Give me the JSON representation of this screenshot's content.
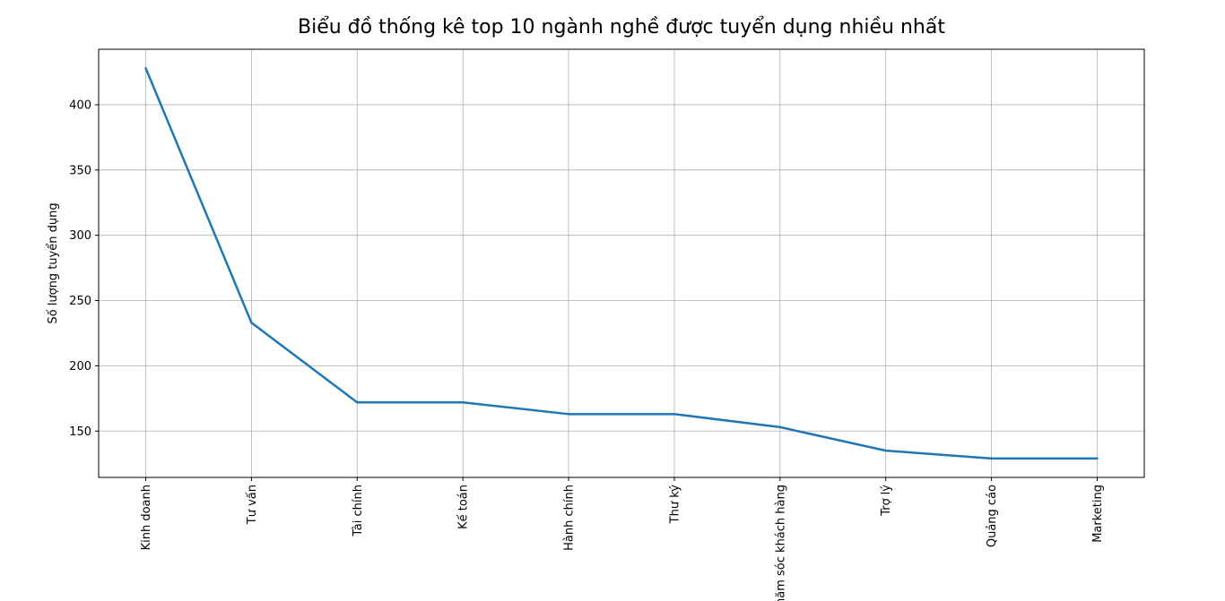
{
  "chart_data": {
    "type": "line",
    "title": "Biểu đồ thống kê top 10 ngành nghề được tuyển dụng nhiều nhất",
    "xlabel": "",
    "ylabel": "Số lượng tuyển dụng",
    "categories": [
      "Kinh doanh",
      "Tư vấn",
      "Tài chính",
      "Kế toán",
      "Hành chính",
      "Thư ký",
      "Chăm sóc khách hàng",
      "Trợ lý",
      "Quảng cáo",
      "Marketing"
    ],
    "values": [
      428,
      233,
      172,
      172,
      163,
      163,
      153,
      135,
      129,
      129
    ],
    "ylim": [
      114.5,
      442.5
    ],
    "yticks": [
      150,
      200,
      250,
      300,
      350,
      400
    ],
    "grid": true,
    "x_tick_rotation": 90,
    "line_color": "#1f77b4"
  }
}
